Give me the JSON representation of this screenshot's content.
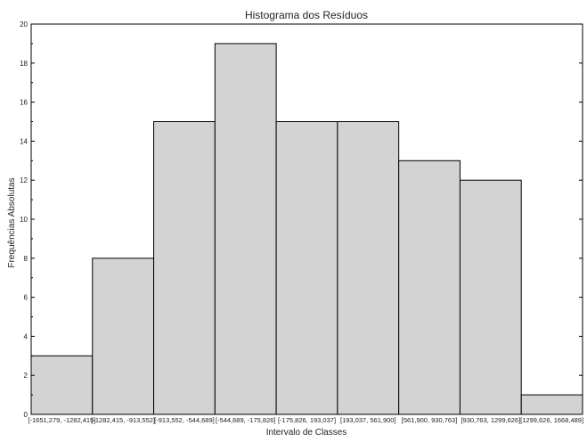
{
  "chart_data": {
    "type": "bar",
    "title": "Histograma dos Resíduos",
    "xlabel": "Intervalo de Classes",
    "ylabel": "Frequências Absolutas",
    "categories": [
      "[-1651,279, -1282,415]",
      "[-1282,415, -913,552]",
      "[-913,552, -544,689]",
      "[-544,689, -175,826]",
      "[-175,826, 193,037]",
      "[193,037, 561,900]",
      "[561,900, 930,763]",
      "[930,763, 1299,626]",
      "[1299,626, 1668,489]"
    ],
    "values": [
      3,
      8,
      15,
      19,
      15,
      15,
      13,
      12,
      1
    ],
    "ylim": [
      0,
      20
    ],
    "yticks": [
      0,
      2,
      4,
      6,
      8,
      10,
      12,
      14,
      16,
      18,
      20
    ],
    "grid": false,
    "colors": {
      "bar_fill": "#d3d3d3",
      "bar_stroke": "#000000",
      "axis": "#000000",
      "text": "#222222"
    }
  }
}
